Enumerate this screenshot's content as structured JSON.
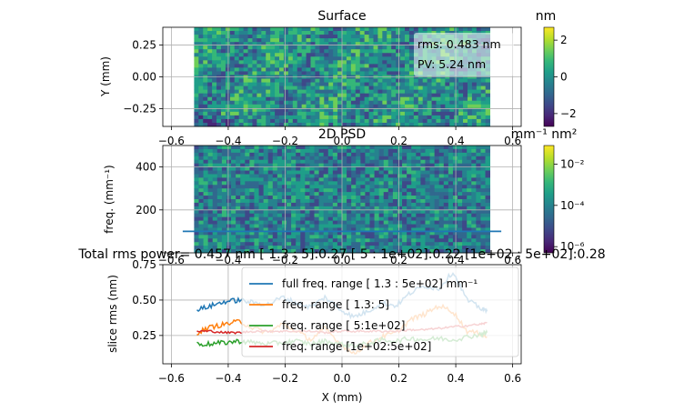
{
  "colors": {
    "series": [
      "#1f77b4",
      "#ff7f0e",
      "#2ca02c",
      "#d62728"
    ],
    "viridis": [
      "#440154",
      "#482878",
      "#3e4989",
      "#31688e",
      "#26828e",
      "#1f9e89",
      "#35b779",
      "#6ece58",
      "#b5de2b",
      "#fde725"
    ],
    "grid": "#b0b0b0"
  },
  "chart_data": [
    {
      "type": "heatmap",
      "title": "Surface",
      "xlabel": "",
      "ylabel": "Y (mm)",
      "xlim": [
        -0.63,
        0.63
      ],
      "ylim": [
        -0.39,
        0.39
      ],
      "data_extent_x": [
        -0.52,
        0.52
      ],
      "xticks": [
        "−0.6",
        "−0.4",
        "−0.2",
        "0.0",
        "0.2",
        "0.4",
        "0.6"
      ],
      "yticks": [
        "0.25",
        "0.00",
        "−0.25"
      ],
      "colorbar": {
        "label": "nm",
        "ticks": [
          "2",
          "0",
          "−2"
        ],
        "range": [
          -2.7,
          2.7
        ]
      },
      "stats": {
        "rms": "rms: 0.483 nm",
        "pv": "PV: 5.24 nm"
      },
      "grid": true
    },
    {
      "type": "heatmap",
      "title": "2D PSD",
      "xlabel": "",
      "ylabel": "freq. (mm⁻¹)",
      "xlim": [
        -0.63,
        0.63
      ],
      "ylim": [
        0,
        500
      ],
      "xticks": [
        "−0.6",
        "−0.4",
        "−0.2",
        "0.0",
        "0.2",
        "0.4",
        "0.6"
      ],
      "yticks": [
        "400",
        "200"
      ],
      "colorbar": {
        "label": "mm⁻¹ nm²",
        "scale": "log",
        "ticks": [
          "10⁻²",
          "10⁻⁴",
          "10⁻⁶"
        ]
      },
      "horizontal_line": {
        "y": 100,
        "x_range": [
          -0.56,
          0.56
        ]
      },
      "grid": true
    },
    {
      "type": "line",
      "title": "Total rms power= 0.457 nm [ 1.3 :   5]:0.27  [   5 : 1e+02]:0.22  [1e+02 : 5e+02]:0.28",
      "xlabel": "X (mm)",
      "ylabel": "slice rms (nm)",
      "xlim": [
        -0.63,
        0.63
      ],
      "ylim": [
        0.05,
        0.75
      ],
      "xticks": [
        "−0.6",
        "−0.4",
        "−0.2",
        "0.0",
        "0.2",
        "0.4",
        "0.6"
      ],
      "yticks": [
        "0.75",
        "0.50",
        "0.25"
      ],
      "legend_position": "top-right",
      "grid": true,
      "x": [
        -0.51,
        -0.46,
        -0.41,
        -0.36,
        -0.31,
        -0.26,
        -0.21,
        -0.16,
        -0.11,
        -0.06,
        -0.01,
        0.04,
        0.09,
        0.14,
        0.19,
        0.24,
        0.29,
        0.34,
        0.39,
        0.44,
        0.49,
        0.51
      ],
      "series": [
        {
          "name": "full freq. range [ 1.3 : 5e+02] mm⁻¹",
          "values": [
            0.43,
            0.46,
            0.49,
            0.5,
            0.48,
            0.47,
            0.52,
            0.48,
            0.45,
            0.52,
            0.44,
            0.38,
            0.42,
            0.48,
            0.46,
            0.55,
            0.6,
            0.58,
            0.7,
            0.5,
            0.44,
            0.42
          ]
        },
        {
          "name": "freq. range [ 1.3:   5]",
          "values": [
            0.27,
            0.31,
            0.33,
            0.35,
            0.3,
            0.27,
            0.33,
            0.28,
            0.22,
            0.3,
            0.2,
            0.12,
            0.19,
            0.24,
            0.27,
            0.36,
            0.4,
            0.46,
            0.42,
            0.28,
            0.26,
            0.24
          ]
        },
        {
          "name": "freq. range [   5:1e+02]",
          "values": [
            0.19,
            0.19,
            0.2,
            0.21,
            0.2,
            0.19,
            0.2,
            0.21,
            0.19,
            0.21,
            0.19,
            0.18,
            0.19,
            0.22,
            0.21,
            0.23,
            0.22,
            0.23,
            0.22,
            0.24,
            0.26,
            0.27
          ]
        },
        {
          "name": "freq. range [1e+02:5e+02]",
          "values": [
            0.28,
            0.28,
            0.27,
            0.27,
            0.28,
            0.28,
            0.28,
            0.28,
            0.28,
            0.27,
            0.28,
            0.28,
            0.28,
            0.28,
            0.28,
            0.29,
            0.29,
            0.3,
            0.31,
            0.32,
            0.33,
            0.34
          ]
        }
      ]
    }
  ]
}
